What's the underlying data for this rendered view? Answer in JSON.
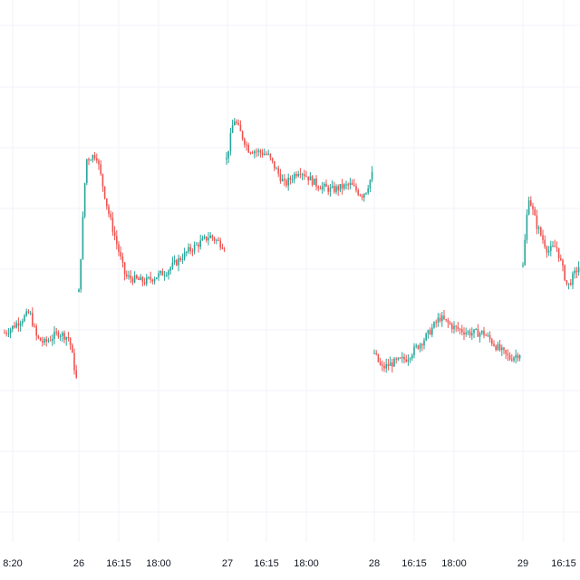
{
  "chart_data": {
    "type": "candlestick",
    "title": "",
    "xlabel": "",
    "ylabel": "",
    "grid": true,
    "colors": {
      "up": "#26a69a",
      "down": "#ef5350",
      "grid": "#f0f3fa",
      "background": "#ffffff"
    },
    "ylim": [
      0,
      100
    ],
    "x_ticks": [
      "8:20",
      "26",
      "16:15",
      "18:00",
      "27",
      "16:15",
      "18:00",
      "28",
      "16:15",
      "18:00",
      "29",
      "16:15"
    ],
    "sessions": [
      {
        "label": "8:20",
        "knots": [
          [
            0,
            44
          ],
          [
            0.1,
            45
          ],
          [
            0.35,
            48
          ],
          [
            0.45,
            43
          ],
          [
            0.55,
            42
          ],
          [
            0.75,
            44
          ],
          [
            0.9,
            43
          ],
          [
            1,
            35
          ]
        ]
      },
      {
        "label": "26",
        "knots": [
          [
            0,
            52
          ],
          [
            0.05,
            78
          ],
          [
            0.12,
            79
          ],
          [
            0.2,
            68
          ],
          [
            0.32,
            55
          ],
          [
            0.45,
            54
          ],
          [
            0.6,
            56
          ],
          [
            0.75,
            60
          ],
          [
            0.9,
            63
          ],
          [
            1,
            61
          ]
        ]
      },
      {
        "label": "27",
        "knots": [
          [
            0,
            78
          ],
          [
            0.05,
            86
          ],
          [
            0.15,
            80
          ],
          [
            0.28,
            79
          ],
          [
            0.4,
            73
          ],
          [
            0.5,
            76
          ],
          [
            0.62,
            73
          ],
          [
            0.72,
            72
          ],
          [
            0.85,
            73
          ],
          [
            0.93,
            71
          ],
          [
            0.96,
            72
          ],
          [
            1,
            75
          ]
        ]
      },
      {
        "label": "28",
        "knots": [
          [
            0,
            40
          ],
          [
            0.05,
            37
          ],
          [
            0.12,
            38
          ],
          [
            0.22,
            39
          ],
          [
            0.35,
            43
          ],
          [
            0.45,
            47
          ],
          [
            0.55,
            45
          ],
          [
            0.65,
            44
          ],
          [
            0.75,
            44
          ],
          [
            0.85,
            41
          ],
          [
            0.93,
            39
          ],
          [
            1,
            40
          ]
        ]
      },
      {
        "label": "29",
        "knots": [
          [
            0,
            57
          ],
          [
            0.1,
            71
          ],
          [
            0.25,
            65
          ],
          [
            0.45,
            60
          ],
          [
            0.6,
            61
          ],
          [
            0.7,
            57
          ],
          [
            0.8,
            53
          ],
          [
            1,
            57
          ]
        ]
      }
    ]
  }
}
